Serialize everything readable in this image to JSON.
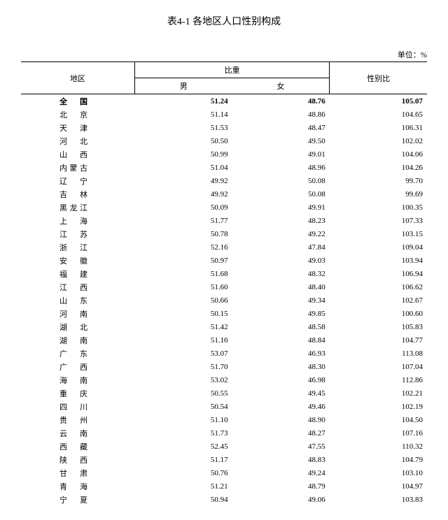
{
  "title": "表4-1 各地区人口性别构成",
  "unit": "单位：%",
  "headers": {
    "region": "地区",
    "proportion": "比重",
    "male": "男",
    "female": "女",
    "ratio": "性别比"
  },
  "rows": [
    {
      "region": "全　国",
      "male": "51.24",
      "female": "48.76",
      "ratio": "105.07",
      "bold": true
    },
    {
      "region": "北　京",
      "male": "51.14",
      "female": "48.86",
      "ratio": "104.65"
    },
    {
      "region": "天　津",
      "male": "51.53",
      "female": "48.47",
      "ratio": "106.31"
    },
    {
      "region": "河　北",
      "male": "50.50",
      "female": "49.50",
      "ratio": "102.02"
    },
    {
      "region": "山　西",
      "male": "50.99",
      "female": "49.01",
      "ratio": "104.06"
    },
    {
      "region": "内蒙古",
      "male": "51.04",
      "female": "48.96",
      "ratio": "104.26"
    },
    {
      "region": "辽　宁",
      "male": "49.92",
      "female": "50.08",
      "ratio": "99.70"
    },
    {
      "region": "吉　林",
      "male": "49.92",
      "female": "50.08",
      "ratio": "99.69"
    },
    {
      "region": "黑龙江",
      "male": "50.09",
      "female": "49.91",
      "ratio": "100.35"
    },
    {
      "region": "上　海",
      "male": "51.77",
      "female": "48.23",
      "ratio": "107.33"
    },
    {
      "region": "江　苏",
      "male": "50.78",
      "female": "49.22",
      "ratio": "103.15"
    },
    {
      "region": "浙　江",
      "male": "52.16",
      "female": "47.84",
      "ratio": "109.04"
    },
    {
      "region": "安　徽",
      "male": "50.97",
      "female": "49.03",
      "ratio": "103.94"
    },
    {
      "region": "福　建",
      "male": "51.68",
      "female": "48.32",
      "ratio": "106.94"
    },
    {
      "region": "江　西",
      "male": "51.60",
      "female": "48.40",
      "ratio": "106.62"
    },
    {
      "region": "山　东",
      "male": "50.66",
      "female": "49.34",
      "ratio": "102.67"
    },
    {
      "region": "河　南",
      "male": "50.15",
      "female": "49.85",
      "ratio": "100.60"
    },
    {
      "region": "湖　北",
      "male": "51.42",
      "female": "48.58",
      "ratio": "105.83"
    },
    {
      "region": "湖　南",
      "male": "51.16",
      "female": "48.84",
      "ratio": "104.77"
    },
    {
      "region": "广　东",
      "male": "53.07",
      "female": "46.93",
      "ratio": "113.08"
    },
    {
      "region": "广　西",
      "male": "51.70",
      "female": "48.30",
      "ratio": "107.04"
    },
    {
      "region": "海　南",
      "male": "53.02",
      "female": "46.98",
      "ratio": "112.86"
    },
    {
      "region": "重　庆",
      "male": "50.55",
      "female": "49.45",
      "ratio": "102.21"
    },
    {
      "region": "四　川",
      "male": "50.54",
      "female": "49.46",
      "ratio": "102.19"
    },
    {
      "region": "贵　州",
      "male": "51.10",
      "female": "48.90",
      "ratio": "104.50"
    },
    {
      "region": "云　南",
      "male": "51.73",
      "female": "48.27",
      "ratio": "107.16"
    },
    {
      "region": "西　藏",
      "male": "52.45",
      "female": "47.55",
      "ratio": "110.32"
    },
    {
      "region": "陕　西",
      "male": "51.17",
      "female": "48.83",
      "ratio": "104.79"
    },
    {
      "region": "甘　肃",
      "male": "50.76",
      "female": "49.24",
      "ratio": "103.10"
    },
    {
      "region": "青　海",
      "male": "51.21",
      "female": "48.79",
      "ratio": "104.97"
    },
    {
      "region": "宁　夏",
      "male": "50.94",
      "female": "49.06",
      "ratio": "103.83"
    }
  ]
}
